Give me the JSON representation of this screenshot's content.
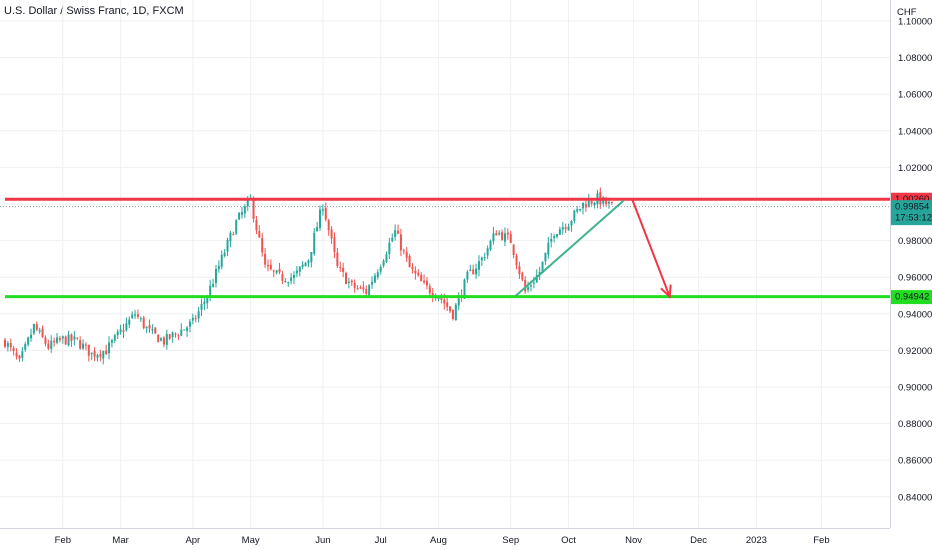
{
  "header": {
    "title": "U.S. Dollar / Swiss Franc, 1D, FXCM"
  },
  "colors": {
    "up": "#26a69a",
    "down": "#ef5350",
    "resistance": "#f23645",
    "support": "#22dd22",
    "trendline": "#3fb28f",
    "projection": "#f23645",
    "grid": "#eef0f3",
    "last_price_bg": "#26a69a"
  },
  "chart_data": {
    "type": "candlestick",
    "currency": "CHF",
    "ylim": [
      0.826,
      1.106
    ],
    "y_ticks": [
      "0.84000",
      "0.86000",
      "0.88000",
      "0.90000",
      "0.92000",
      "0.94000",
      "0.96000",
      "0.98000",
      "1.00000",
      "1.02000",
      "1.04000",
      "1.06000",
      "1.08000",
      "1.10000"
    ],
    "x_ticks": [
      {
        "label": "Feb",
        "week": 4
      },
      {
        "label": "Mar",
        "week": 8
      },
      {
        "label": "Apr",
        "week": 13
      },
      {
        "label": "May",
        "week": 17
      },
      {
        "label": "Jun",
        "week": 22
      },
      {
        "label": "Jul",
        "week": 26
      },
      {
        "label": "Aug",
        "week": 30
      },
      {
        "label": "Sep",
        "week": 35
      },
      {
        "label": "Oct",
        "week": 39
      },
      {
        "label": "Nov",
        "week": 43.5
      },
      {
        "label": "Dec",
        "week": 48
      },
      {
        "label": "2023",
        "week": 52
      },
      {
        "label": "Feb",
        "week": 56.5
      }
    ],
    "path_weeks": [
      0,
      1,
      2,
      3,
      4,
      5,
      6,
      7,
      8,
      9,
      10,
      11,
      12,
      13,
      14,
      15,
      16,
      17,
      18,
      19,
      20,
      21,
      22,
      23,
      24,
      25,
      26,
      27,
      28,
      29,
      30,
      31,
      32,
      33,
      34,
      35,
      36,
      37,
      38,
      39,
      40,
      41,
      42
    ],
    "path_values": [
      0.925,
      0.913,
      0.933,
      0.922,
      0.926,
      0.925,
      0.918,
      0.92,
      0.93,
      0.94,
      0.93,
      0.925,
      0.93,
      0.935,
      0.95,
      0.97,
      0.99,
      1.002,
      0.965,
      0.96,
      0.96,
      0.97,
      1.0,
      0.965,
      0.955,
      0.952,
      0.968,
      0.985,
      0.965,
      0.955,
      0.95,
      0.94,
      0.96,
      0.97,
      0.985,
      0.98,
      0.952,
      0.963,
      0.985,
      0.99,
      1.0,
      1.003,
      0.9985
    ],
    "last_week": 42,
    "resistance": {
      "value": 1.0026,
      "label": "1.00260",
      "start_week": 0,
      "end_week": 61.6
    },
    "support": {
      "value": 0.9494,
      "label": "0.94942",
      "start_week": 0,
      "end_week": 61.6
    },
    "last_price": {
      "value": 0.99854,
      "label": "0.99854",
      "countdown": "17:53:12"
    },
    "trendline": {
      "from": {
        "week": 35.3,
        "value": 0.9495
      },
      "to": {
        "week": 42.8,
        "value": 1.0018
      }
    },
    "projection": {
      "points": [
        {
          "week": 43.0,
          "value": 1.0026
        },
        {
          "week": 43.4,
          "value": 1.0026
        },
        {
          "week": 46.0,
          "value": 0.9494
        }
      ]
    }
  }
}
